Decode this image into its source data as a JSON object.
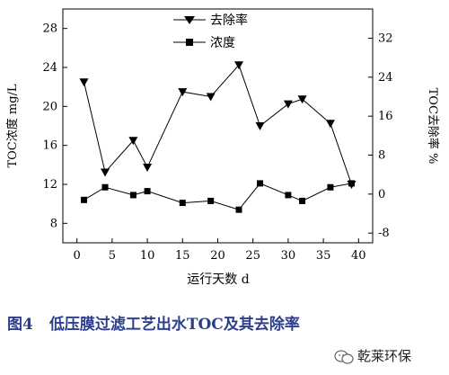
{
  "chart_data": {
    "type": "line",
    "xlabel": "运行天数 d",
    "ylabel_left": "TOC浓度 mg/L",
    "ylabel_right": "TOC去除率 %",
    "x_ticks": [
      "0",
      "5",
      "10",
      "15",
      "20",
      "25",
      "30",
      "35",
      "40"
    ],
    "y_left_ticks": [
      "8",
      "12",
      "16",
      "20",
      "24",
      "28"
    ],
    "y_right_ticks": [
      "-8",
      "0",
      "8",
      "16",
      "24",
      "32"
    ],
    "xlim": [
      -2,
      42
    ],
    "ylim_left": [
      6,
      30
    ],
    "ylim_right": [
      -10,
      38
    ],
    "series": [
      {
        "name": "去除率",
        "axis": "right",
        "marker": "triangle-down",
        "x": [
          1,
          4,
          8,
          10,
          15,
          19,
          23,
          26,
          30,
          32,
          36,
          39
        ],
        "y": [
          23,
          4.5,
          11,
          5.5,
          21,
          20,
          26.5,
          14,
          18.5,
          19.5,
          14.5,
          2
        ]
      },
      {
        "name": "浓度",
        "axis": "left",
        "marker": "square",
        "x": [
          1,
          4,
          8,
          10,
          15,
          19,
          23,
          26,
          30,
          32,
          36,
          39
        ],
        "y": [
          10.4,
          11.7,
          10.9,
          11.3,
          10.1,
          10.3,
          9.4,
          12.1,
          10.9,
          10.3,
          11.7,
          12.1
        ]
      }
    ],
    "legend_position": "top-center"
  },
  "caption": {
    "figure_number": "图4",
    "title": "低压膜过滤工艺出水TOC及其去除率"
  },
  "watermark": {
    "text": "乾莱环保"
  }
}
